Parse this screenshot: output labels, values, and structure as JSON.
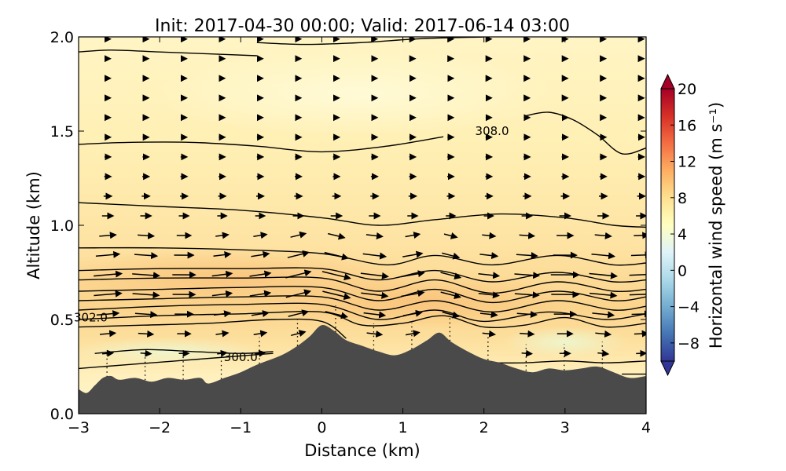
{
  "chart_data": {
    "type": "heatmap",
    "title": "Init: 2017-04-30 00:00; Valid: 2017-06-14 03:00",
    "xlabel": "Distance (km)",
    "ylabel": "Altitude (km)",
    "xlim": [
      -3,
      4
    ],
    "ylim": [
      0.0,
      2.0
    ],
    "x_ticks": [
      -3,
      -2,
      -1,
      0,
      1,
      2,
      3,
      4
    ],
    "x_tick_labels": [
      "−3",
      "−2",
      "−1",
      "0",
      "1",
      "2",
      "3",
      "4"
    ],
    "y_ticks": [
      0.0,
      0.5,
      1.0,
      1.5,
      2.0
    ],
    "y_tick_labels": [
      "0.0",
      "0.5",
      "1.0",
      "1.5",
      "2.0"
    ],
    "colorbar": {
      "label": "Horizontal wind speed (m s⁻¹)",
      "min": -10,
      "max": 20,
      "ticks": [
        20,
        16,
        12,
        8,
        4,
        0,
        -4,
        -8
      ],
      "tick_labels": [
        "20",
        "16",
        "12",
        "8",
        "4",
        "0",
        "−4",
        "−8"
      ],
      "colormap": [
        "#313695",
        "#4575b4",
        "#74add1",
        "#abd9e9",
        "#e0f3f8",
        "#ffffbf",
        "#fee090",
        "#fdae61",
        "#f46d43",
        "#d73027",
        "#a50026"
      ],
      "extend": "both"
    },
    "terrain": {
      "color": "#4a4a4a",
      "x": [
        -3.0,
        -2.9,
        -2.8,
        -2.7,
        -2.6,
        -2.5,
        -2.3,
        -2.1,
        -1.9,
        -1.7,
        -1.5,
        -1.4,
        -1.2,
        -1.0,
        -0.8,
        -0.5,
        -0.3,
        -0.15,
        0.0,
        0.15,
        0.3,
        0.5,
        0.7,
        0.9,
        1.1,
        1.3,
        1.45,
        1.6,
        1.8,
        2.0,
        2.2,
        2.4,
        2.6,
        2.8,
        3.0,
        3.2,
        3.4,
        3.6,
        3.8,
        4.0
      ],
      "y": [
        0.13,
        0.11,
        0.15,
        0.19,
        0.2,
        0.18,
        0.19,
        0.17,
        0.19,
        0.18,
        0.19,
        0.16,
        0.19,
        0.22,
        0.26,
        0.31,
        0.36,
        0.41,
        0.47,
        0.44,
        0.39,
        0.36,
        0.33,
        0.31,
        0.34,
        0.39,
        0.43,
        0.38,
        0.33,
        0.29,
        0.27,
        0.24,
        0.22,
        0.24,
        0.23,
        0.24,
        0.25,
        0.22,
        0.19,
        0.2
      ]
    },
    "theta_contours": [
      {
        "level": 300.0,
        "label": "300.0",
        "label_x": -1.0,
        "label_y": 0.3,
        "x": [
          -2.8,
          -2.2,
          -1.6,
          -1.0,
          -0.6
        ],
        "y": [
          0.32,
          0.34,
          0.33,
          0.32,
          0.33
        ]
      },
      {
        "level": 301.0,
        "x": [
          -3.0,
          -2.4,
          -1.8,
          -1.2,
          -0.6
        ],
        "y": [
          0.24,
          0.26,
          0.28,
          0.3,
          0.32
        ]
      },
      {
        "level": 302.0,
        "label": "302.0",
        "label_x": -2.85,
        "label_y": 0.51,
        "x": [
          -3.0,
          -2.2,
          -1.4,
          -0.6,
          0.0,
          0.3
        ],
        "y": [
          0.46,
          0.47,
          0.48,
          0.5,
          0.49,
          0.4
        ]
      },
      {
        "level": 302.5,
        "x": [
          -3.0,
          -2.0,
          -1.0,
          0.0,
          0.5,
          1.0,
          1.5,
          2.0,
          2.5,
          3.0,
          3.5,
          4.0
        ],
        "y": [
          0.5,
          0.52,
          0.53,
          0.54,
          0.47,
          0.48,
          0.52,
          0.46,
          0.47,
          0.51,
          0.46,
          0.48
        ]
      },
      {
        "level": 303.0,
        "x": [
          -3.0,
          -2.0,
          -1.0,
          0.0,
          0.7,
          1.4,
          2.0,
          2.8,
          3.5,
          4.0
        ],
        "y": [
          0.55,
          0.57,
          0.58,
          0.58,
          0.5,
          0.55,
          0.49,
          0.54,
          0.5,
          0.53
        ]
      },
      {
        "level": 303.5,
        "x": [
          -3.0,
          -2.0,
          -1.0,
          0.0,
          0.7,
          1.4,
          2.1,
          2.9,
          3.6,
          4.0
        ],
        "y": [
          0.6,
          0.61,
          0.62,
          0.62,
          0.55,
          0.6,
          0.54,
          0.6,
          0.55,
          0.57
        ]
      },
      {
        "level": 304.0,
        "x": [
          -3.0,
          -2.0,
          -1.0,
          0.0,
          0.7,
          1.4,
          2.1,
          2.9,
          3.6,
          4.0
        ],
        "y": [
          0.65,
          0.66,
          0.67,
          0.67,
          0.6,
          0.66,
          0.59,
          0.65,
          0.6,
          0.62
        ]
      },
      {
        "level": 304.5,
        "x": [
          -3.0,
          -2.0,
          -1.0,
          0.0,
          0.7,
          1.4,
          2.1,
          2.9,
          3.6,
          4.0
        ],
        "y": [
          0.71,
          0.72,
          0.72,
          0.72,
          0.65,
          0.71,
          0.64,
          0.7,
          0.65,
          0.66
        ]
      },
      {
        "level": 305.0,
        "x": [
          -3.0,
          -2.0,
          -1.0,
          0.0,
          0.7,
          1.4,
          2.1,
          2.9,
          3.6,
          4.0
        ],
        "y": [
          0.76,
          0.77,
          0.77,
          0.77,
          0.71,
          0.76,
          0.7,
          0.75,
          0.7,
          0.71
        ]
      },
      {
        "level": 305.5,
        "x": [
          -3.0,
          -2.0,
          -1.0,
          0.0,
          0.8,
          1.4,
          2.1,
          2.9,
          3.6,
          4.0
        ],
        "y": [
          0.88,
          0.88,
          0.87,
          0.85,
          0.79,
          0.84,
          0.79,
          0.84,
          0.79,
          0.8
        ]
      },
      {
        "level": 306.0,
        "x": [
          -3.0,
          -2.0,
          -1.0,
          0.0,
          0.7,
          1.4,
          2.2,
          3.0,
          3.6,
          4.0
        ],
        "y": [
          1.12,
          1.1,
          1.08,
          1.04,
          1.0,
          1.03,
          1.06,
          1.04,
          1.0,
          0.99
        ]
      },
      {
        "level": 308.0,
        "label": "308.0",
        "label_x": 2.1,
        "label_y": 1.5,
        "x": [
          -3.0,
          -2.4,
          -1.6,
          -0.8,
          0.0,
          0.8,
          1.5
        ],
        "y": [
          1.43,
          1.44,
          1.44,
          1.42,
          1.39,
          1.42,
          1.47
        ]
      },
      {
        "level": 308.5,
        "x": [
          2.5,
          2.8,
          3.1,
          3.4,
          3.7,
          4.0
        ],
        "y": [
          1.58,
          1.6,
          1.56,
          1.48,
          1.38,
          1.41
        ]
      },
      {
        "level": 309.0,
        "x": [
          -3.0,
          -2.6,
          -2.0,
          -1.4,
          -0.8
        ],
        "y": [
          1.92,
          1.93,
          1.92,
          1.91,
          1.9
        ]
      },
      {
        "level": 309.5,
        "x": [
          -0.8,
          -0.2,
          0.5,
          1.2,
          2.0
        ],
        "y": [
          1.97,
          1.96,
          1.97,
          1.99,
          2.0
        ]
      },
      {
        "level": 301.5,
        "x": [
          2.1,
          2.5,
          3.0,
          3.5,
          4.0
        ],
        "y": [
          0.27,
          0.27,
          0.28,
          0.27,
          0.28
        ]
      },
      {
        "level": 301.6,
        "x": [
          3.7,
          3.85,
          4.0
        ],
        "y": [
          0.21,
          0.21,
          0.21
        ]
      }
    ]
  }
}
